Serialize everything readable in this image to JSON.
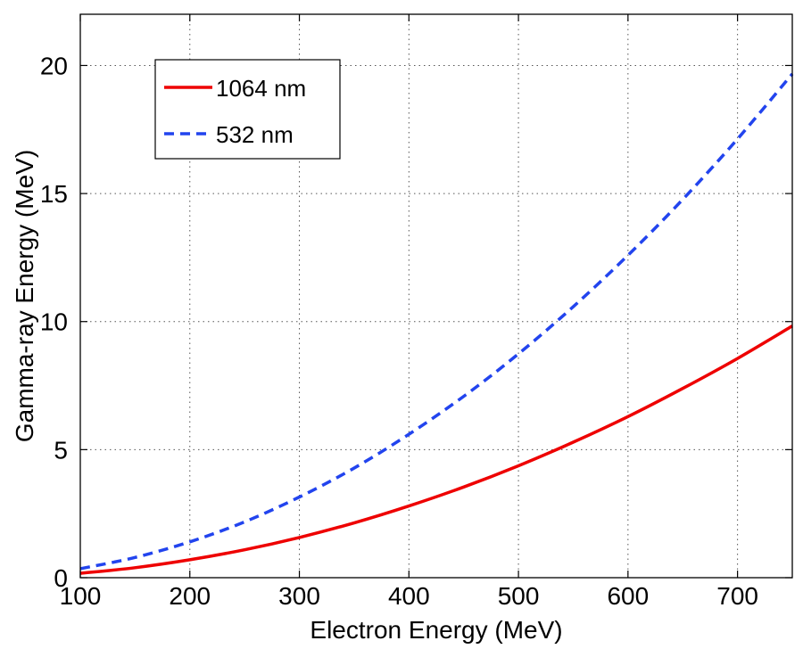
{
  "chart_data": {
    "type": "line",
    "title": "",
    "xlabel": "Electron Energy (MeV)",
    "ylabel": "Gamma-ray Energy (MeV)",
    "xlim": [
      100,
      750
    ],
    "ylim": [
      0,
      22
    ],
    "xticks": [
      100,
      200,
      300,
      400,
      500,
      600,
      700
    ],
    "yticks": [
      0,
      5,
      10,
      15,
      20
    ],
    "grid": true,
    "legend_position": "top-left",
    "x": [
      100,
      150,
      200,
      250,
      300,
      350,
      400,
      450,
      500,
      550,
      600,
      650,
      700,
      750
    ],
    "series": [
      {
        "name": "1064 nm",
        "color": "#ee0000",
        "style": "solid",
        "values": [
          0.17,
          0.39,
          0.7,
          1.09,
          1.57,
          2.14,
          2.8,
          3.54,
          4.37,
          5.29,
          6.29,
          7.39,
          8.56,
          9.83
        ]
      },
      {
        "name": "532 nm",
        "color": "#2244ee",
        "style": "dashed",
        "values": [
          0.35,
          0.79,
          1.4,
          2.18,
          3.15,
          4.28,
          5.6,
          7.08,
          8.74,
          10.58,
          12.59,
          14.77,
          17.13,
          19.67
        ]
      }
    ]
  }
}
